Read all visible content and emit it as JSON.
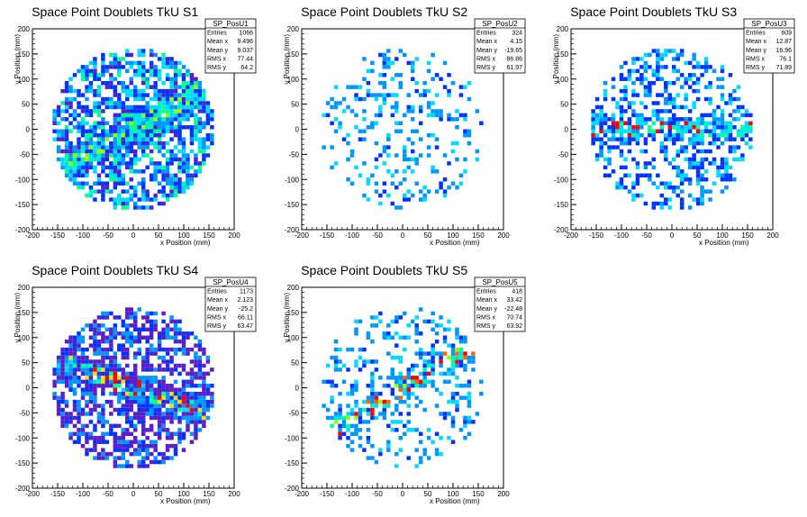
{
  "chart_data": [
    {
      "type": "heatmap",
      "title": "Space Point Doublets TkU S1",
      "xlabel": "x Position (mm)",
      "ylabel": "y Position (mm)",
      "xlim": [
        -200,
        200
      ],
      "ylim": [
        -200,
        200
      ],
      "x_ticks": [
        "-200",
        "-150",
        "-100",
        "-50",
        "0",
        "50",
        "100",
        "150",
        "200"
      ],
      "y_ticks": [
        "-200",
        "-150",
        "-100",
        "-50",
        "0",
        "50",
        "100",
        "150",
        "200"
      ],
      "stats": {
        "name": "SP_PosU1",
        "rows": [
          {
            "label": "Entries",
            "value": "1066"
          },
          {
            "label": "Mean x",
            "value": "9.496"
          },
          {
            "label": "Mean y",
            "value": "9.037"
          },
          {
            "label": "RMS x",
            "value": "77.44"
          },
          {
            "label": "RMS y",
            "value": "64.2"
          }
        ]
      },
      "pattern": "dense_diagonal"
    },
    {
      "type": "heatmap",
      "title": "Space Point Doublets TkU S2",
      "xlabel": "x Position (mm)",
      "ylabel": "y Position (mm)",
      "xlim": [
        -200,
        200
      ],
      "ylim": [
        -200,
        200
      ],
      "x_ticks": [
        "-200",
        "-150",
        "-100",
        "-50",
        "0",
        "50",
        "100",
        "150",
        "200"
      ],
      "y_ticks": [
        "-200",
        "-150",
        "-100",
        "-50",
        "0",
        "50",
        "100",
        "150",
        "200"
      ],
      "stats": {
        "name": "SP_PosU2",
        "rows": [
          {
            "label": "Entries",
            "value": "324"
          },
          {
            "label": "Mean x",
            "value": "4.15"
          },
          {
            "label": "Mean y",
            "value": "-19.65"
          },
          {
            "label": "RMS x",
            "value": "86.86"
          },
          {
            "label": "RMS y",
            "value": "61.97"
          }
        ]
      },
      "pattern": "sparse"
    },
    {
      "type": "heatmap",
      "title": "Space Point Doublets TkU S3",
      "xlabel": "x Position (mm)",
      "ylabel": "y Position (mm)",
      "xlim": [
        -200,
        200
      ],
      "ylim": [
        -200,
        200
      ],
      "x_ticks": [
        "-200",
        "-150",
        "-100",
        "-50",
        "0",
        "50",
        "100",
        "150",
        "200"
      ],
      "y_ticks": [
        "-200",
        "-150",
        "-100",
        "-50",
        "0",
        "50",
        "100",
        "150",
        "200"
      ],
      "stats": {
        "name": "SP_PosU3",
        "rows": [
          {
            "label": "Entries",
            "value": "609"
          },
          {
            "label": "Mean x",
            "value": "12.87"
          },
          {
            "label": "Mean y",
            "value": "16.96"
          },
          {
            "label": "RMS x",
            "value": "76.1"
          },
          {
            "label": "RMS y",
            "value": "71.89"
          }
        ]
      },
      "pattern": "medium"
    },
    {
      "type": "heatmap",
      "title": "Space Point Doublets TkU S4",
      "xlabel": "x Position (mm)",
      "ylabel": "y Position (mm)",
      "xlim": [
        -200,
        200
      ],
      "ylim": [
        -200,
        200
      ],
      "x_ticks": [
        "-200",
        "-150",
        "-100",
        "-50",
        "0",
        "50",
        "100",
        "150",
        "200"
      ],
      "y_ticks": [
        "-200",
        "-150",
        "-100",
        "-50",
        "0",
        "50",
        "100",
        "150",
        "200"
      ],
      "stats": {
        "name": "SP_PosU4",
        "rows": [
          {
            "label": "Entries",
            "value": "1173"
          },
          {
            "label": "Mean x",
            "value": "2.123"
          },
          {
            "label": "Mean y",
            "value": "-25.2"
          },
          {
            "label": "RMS x",
            "value": "66.11"
          },
          {
            "label": "RMS y",
            "value": "63.47"
          }
        ]
      },
      "pattern": "dense_purple"
    },
    {
      "type": "heatmap",
      "title": "Space Point Doublets TkU S5",
      "xlabel": "x Position (mm)",
      "ylabel": "y Position (mm)",
      "xlim": [
        -200,
        200
      ],
      "ylim": [
        -200,
        200
      ],
      "x_ticks": [
        "-200",
        "-150",
        "-100",
        "-50",
        "0",
        "50",
        "100",
        "150",
        "200"
      ],
      "y_ticks": [
        "-200",
        "-150",
        "-100",
        "-50",
        "0",
        "50",
        "100",
        "150",
        "200"
      ],
      "stats": {
        "name": "SP_PosU5",
        "rows": [
          {
            "label": "Entries",
            "value": "418"
          },
          {
            "label": "Mean x",
            "value": "33.42"
          },
          {
            "label": "Mean y",
            "value": "-22.48"
          },
          {
            "label": "RMS x",
            "value": "70.74"
          },
          {
            "label": "RMS y",
            "value": "63.92"
          }
        ]
      },
      "pattern": "sparse_diagonal"
    }
  ],
  "colors": {
    "palette": [
      "#5a1ec8",
      "#0032ff",
      "#0096ff",
      "#00dcff",
      "#00ff96",
      "#96ff00",
      "#ffdc00",
      "#ff6400",
      "#ff0000"
    ],
    "frame": "#000000"
  }
}
